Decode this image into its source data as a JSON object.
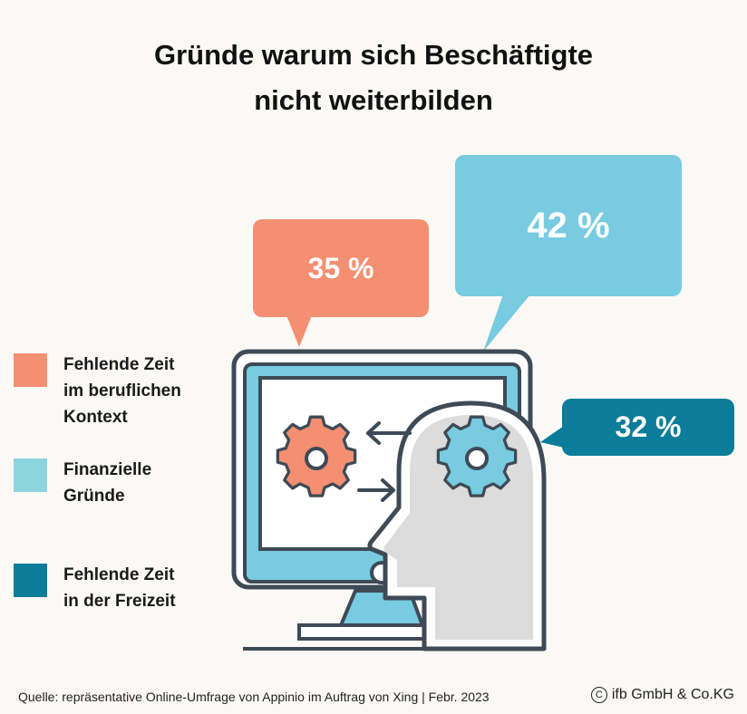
{
  "title": {
    "line1": "Gründe warum sich Beschäftigte",
    "line2": "nicht weiterbilden"
  },
  "bubbles": [
    {
      "value": "35 %",
      "color": "#f48f72"
    },
    {
      "value": "42 %",
      "color": "#78cbe0"
    },
    {
      "value": "32 %",
      "color": "#0b7c9a"
    }
  ],
  "legend": [
    {
      "line1": "Fehlende Zeit",
      "line2": "im beruflichen",
      "line3": "Kontext",
      "color": "#f48f72"
    },
    {
      "line1": "Finanzielle",
      "line2": "Gründe",
      "color": "#8dd5dd"
    },
    {
      "line1": "Fehlende Zeit",
      "line2": "in der Freizeit",
      "color": "#0b7c9a"
    }
  ],
  "footer": {
    "source": "Quelle: repräsentative Online-Umfrage von Appinio im Auftrag von Xing | Febr. 2023",
    "copyright_symbol": "C",
    "copyright": "ifb GmbH & Co.KG"
  },
  "icons": [
    "computer-monitor-icon",
    "head-silhouette-icon",
    "gear-icon",
    "arrow-left-icon",
    "arrow-right-icon"
  ]
}
